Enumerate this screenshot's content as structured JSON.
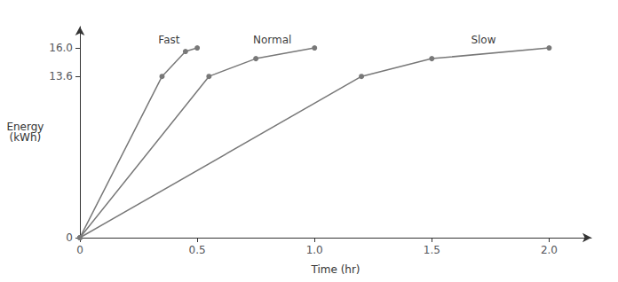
{
  "chart_data": {
    "type": "line",
    "xlabel": "Time (hr)",
    "ylabel": "Energy\n(kWh)",
    "color": "#787878",
    "marker": "circle",
    "grid": false,
    "series": [
      {
        "name": "Fast",
        "x": [
          0,
          0.35,
          0.45,
          0.5
        ],
        "values": [
          0,
          13.6,
          15.7,
          16.0
        ]
      },
      {
        "name": "Normal",
        "x": [
          0,
          0.55,
          0.75,
          1.0
        ],
        "values": [
          0,
          13.6,
          15.1,
          16.0
        ]
      },
      {
        "name": "Slow",
        "x": [
          0,
          1.2,
          1.5,
          2.0
        ],
        "values": [
          0,
          13.6,
          15.1,
          16.0
        ]
      }
    ],
    "annotations": [
      {
        "text": "Fast",
        "x": 0.38,
        "y": 16.25
      },
      {
        "text": "Normal",
        "x": 0.82,
        "y": 16.25
      },
      {
        "text": "Slow",
        "x": 1.72,
        "y": 16.25
      }
    ],
    "xlim": [
      0,
      2.18
    ],
    "xticks": [
      0,
      0.5,
      {
        "value": 1.0,
        "label": "1.0"
      },
      1.5,
      {
        "value": 2.0,
        "label": "2.0"
      }
    ],
    "ylim": [
      0,
      17.8
    ],
    "yticks": [
      0,
      13.6,
      {
        "value": 16.0,
        "label": "16.0"
      }
    ]
  }
}
